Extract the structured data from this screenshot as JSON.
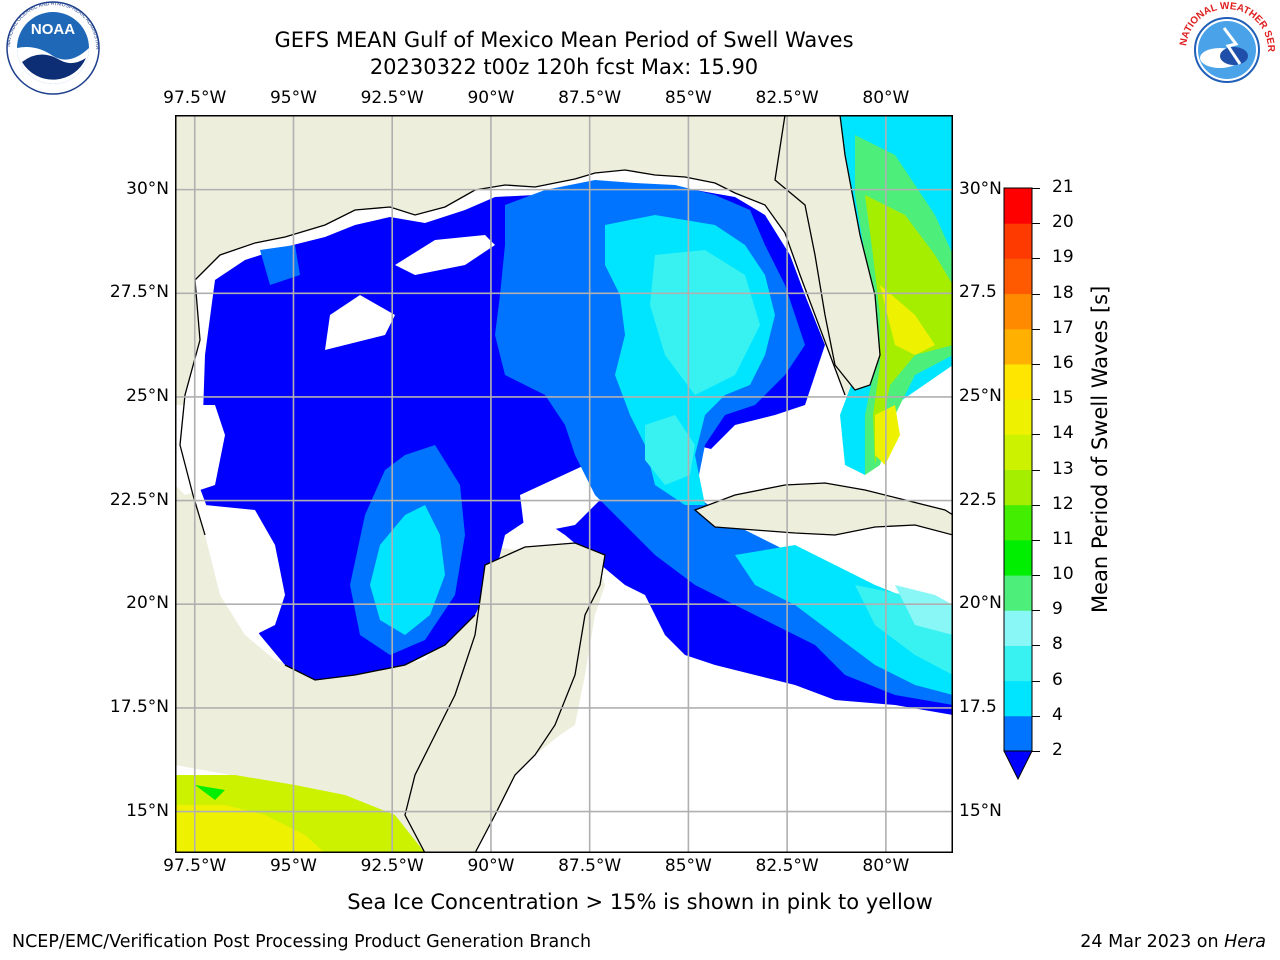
{
  "header": {
    "title": "GEFS MEAN Gulf of Mexico Mean Period of Swell Waves",
    "subtitle": "20230322 t00z 120h fcst   Max: 15.90"
  },
  "logos": {
    "noaa": {
      "text": "NOAA",
      "ring": "NATIONAL OCEANIC AND ATMOSPHERIC ADMINISTRATION · U.S. DEPARTMENT OF COMMERCE"
    },
    "nws": {
      "ring": "NATIONAL WEATHER SERVICE"
    }
  },
  "chart_data": {
    "type": "heatmap",
    "title": "GEFS MEAN Gulf of Mexico Mean Period of Swell Waves",
    "subtitle": "20230322 t00z 120h fcst   Max: 15.90",
    "variable": "Mean Period of Swell Waves [s]",
    "max_value": 15.9,
    "xlim_lon": [
      -98.0,
      -78.3
    ],
    "ylim_lat": [
      14.0,
      31.8
    ],
    "x_ticks": [
      "97.5°W",
      "95°W",
      "92.5°W",
      "90°W",
      "87.5°W",
      "85°W",
      "82.5°W",
      "80°W"
    ],
    "x_tick_values": [
      -97.5,
      -95,
      -92.5,
      -90,
      -87.5,
      -85,
      -82.5,
      -80
    ],
    "y_ticks_left": [
      "30°N",
      "27.5°N",
      "25°N",
      "22.5°N",
      "20°N",
      "17.5°N",
      "15°N"
    ],
    "y_ticks_right": [
      "30°N",
      "27.5",
      "25°N",
      "22.5",
      "20°N",
      "17.5",
      "15°N"
    ],
    "y_tick_values": [
      30,
      27.5,
      25,
      22.5,
      20,
      17.5,
      15
    ],
    "grid": true,
    "colorbar": {
      "label": "Mean Period of Swell Waves [s]",
      "ticks": [
        "21",
        "20",
        "19",
        "18",
        "17",
        "16",
        "15",
        "14",
        "13",
        "12",
        "11",
        "10",
        "9",
        "8",
        "6",
        "4",
        "2"
      ],
      "bins": [
        {
          "from": 2,
          "to": 4,
          "color": "#0073ff"
        },
        {
          "from": 4,
          "to": 6,
          "color": "#00e5ff"
        },
        {
          "from": 6,
          "to": 8,
          "color": "#38f2f2"
        },
        {
          "from": 8,
          "to": 9,
          "color": "#8af7f7"
        },
        {
          "from": 9,
          "to": 10,
          "color": "#4def7a"
        },
        {
          "from": 10,
          "to": 11,
          "color": "#00ee00"
        },
        {
          "from": 11,
          "to": 12,
          "color": "#44ee00"
        },
        {
          "from": 12,
          "to": 13,
          "color": "#a6ee00"
        },
        {
          "from": 13,
          "to": 14,
          "color": "#ccf200"
        },
        {
          "from": 14,
          "to": 15,
          "color": "#eef200"
        },
        {
          "from": 15,
          "to": 16,
          "color": "#ffe600"
        },
        {
          "from": 16,
          "to": 17,
          "color": "#ffb000"
        },
        {
          "from": 17,
          "to": 18,
          "color": "#ff8a00"
        },
        {
          "from": 18,
          "to": 19,
          "color": "#ff5a00"
        },
        {
          "from": 19,
          "to": 20,
          "color": "#ff3a00"
        },
        {
          "from": 20,
          "to": 21,
          "color": "#ff0000"
        }
      ],
      "under_color": "#0000ff"
    },
    "colors": {
      "land": "#eeeedd",
      "no_data": "#ffffff",
      "grid": "#b0b0b0",
      "coast": "#000000"
    }
  },
  "notes": {
    "sea_ice": "Sea Ice Concentration > 15% is shown in pink to yellow"
  },
  "footer": {
    "left": "NCEP/EMC/Verification Post Processing Product Generation Branch",
    "right_prefix": "24 Mar 2023 on ",
    "right_host": "Hera"
  }
}
